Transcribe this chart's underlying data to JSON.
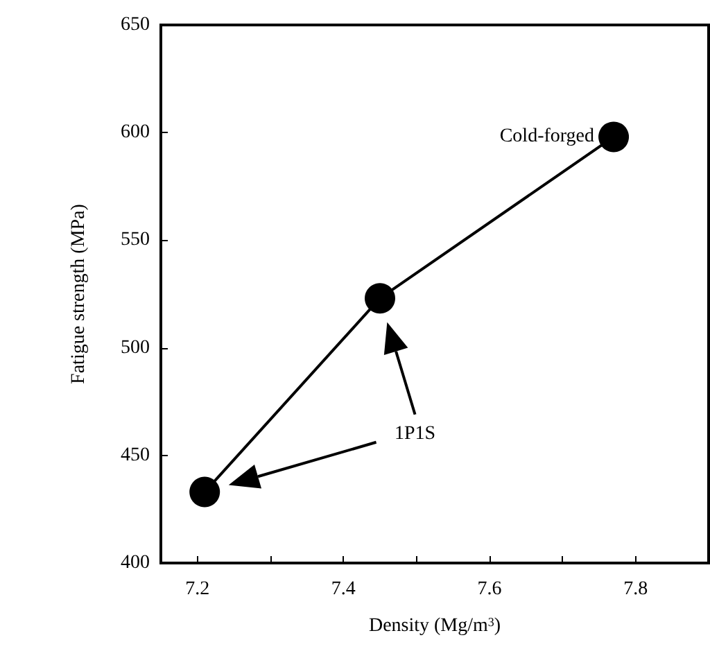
{
  "chart_data": {
    "type": "line",
    "xlabel": "Density (Mg/m$^{3}$)",
    "ylabel": "Fatigue strength (MPa)",
    "x": [
      7.21,
      7.45,
      7.77
    ],
    "series": [
      {
        "color": "#000000",
        "values": [
          433,
          523,
          598
        ]
      }
    ],
    "xlim": [
      7.15,
      7.9
    ],
    "xticks": [
      7.2,
      {
        "value": 7.3,
        "label": null
      },
      7.4,
      {
        "value": 7.5,
        "label": null
      },
      7.6,
      {
        "value": 7.7,
        "label": null
      },
      7.8
    ],
    "ylim": [
      400,
      650
    ],
    "yticks": [
      400,
      450,
      500,
      550,
      600,
      650
    ],
    "grid": false,
    "marker": "circle",
    "line_style": "solid",
    "annotations": [
      {
        "text": "Cold-forged",
        "x": 7.77,
        "y": 598
      },
      "1P1S"
    ]
  }
}
